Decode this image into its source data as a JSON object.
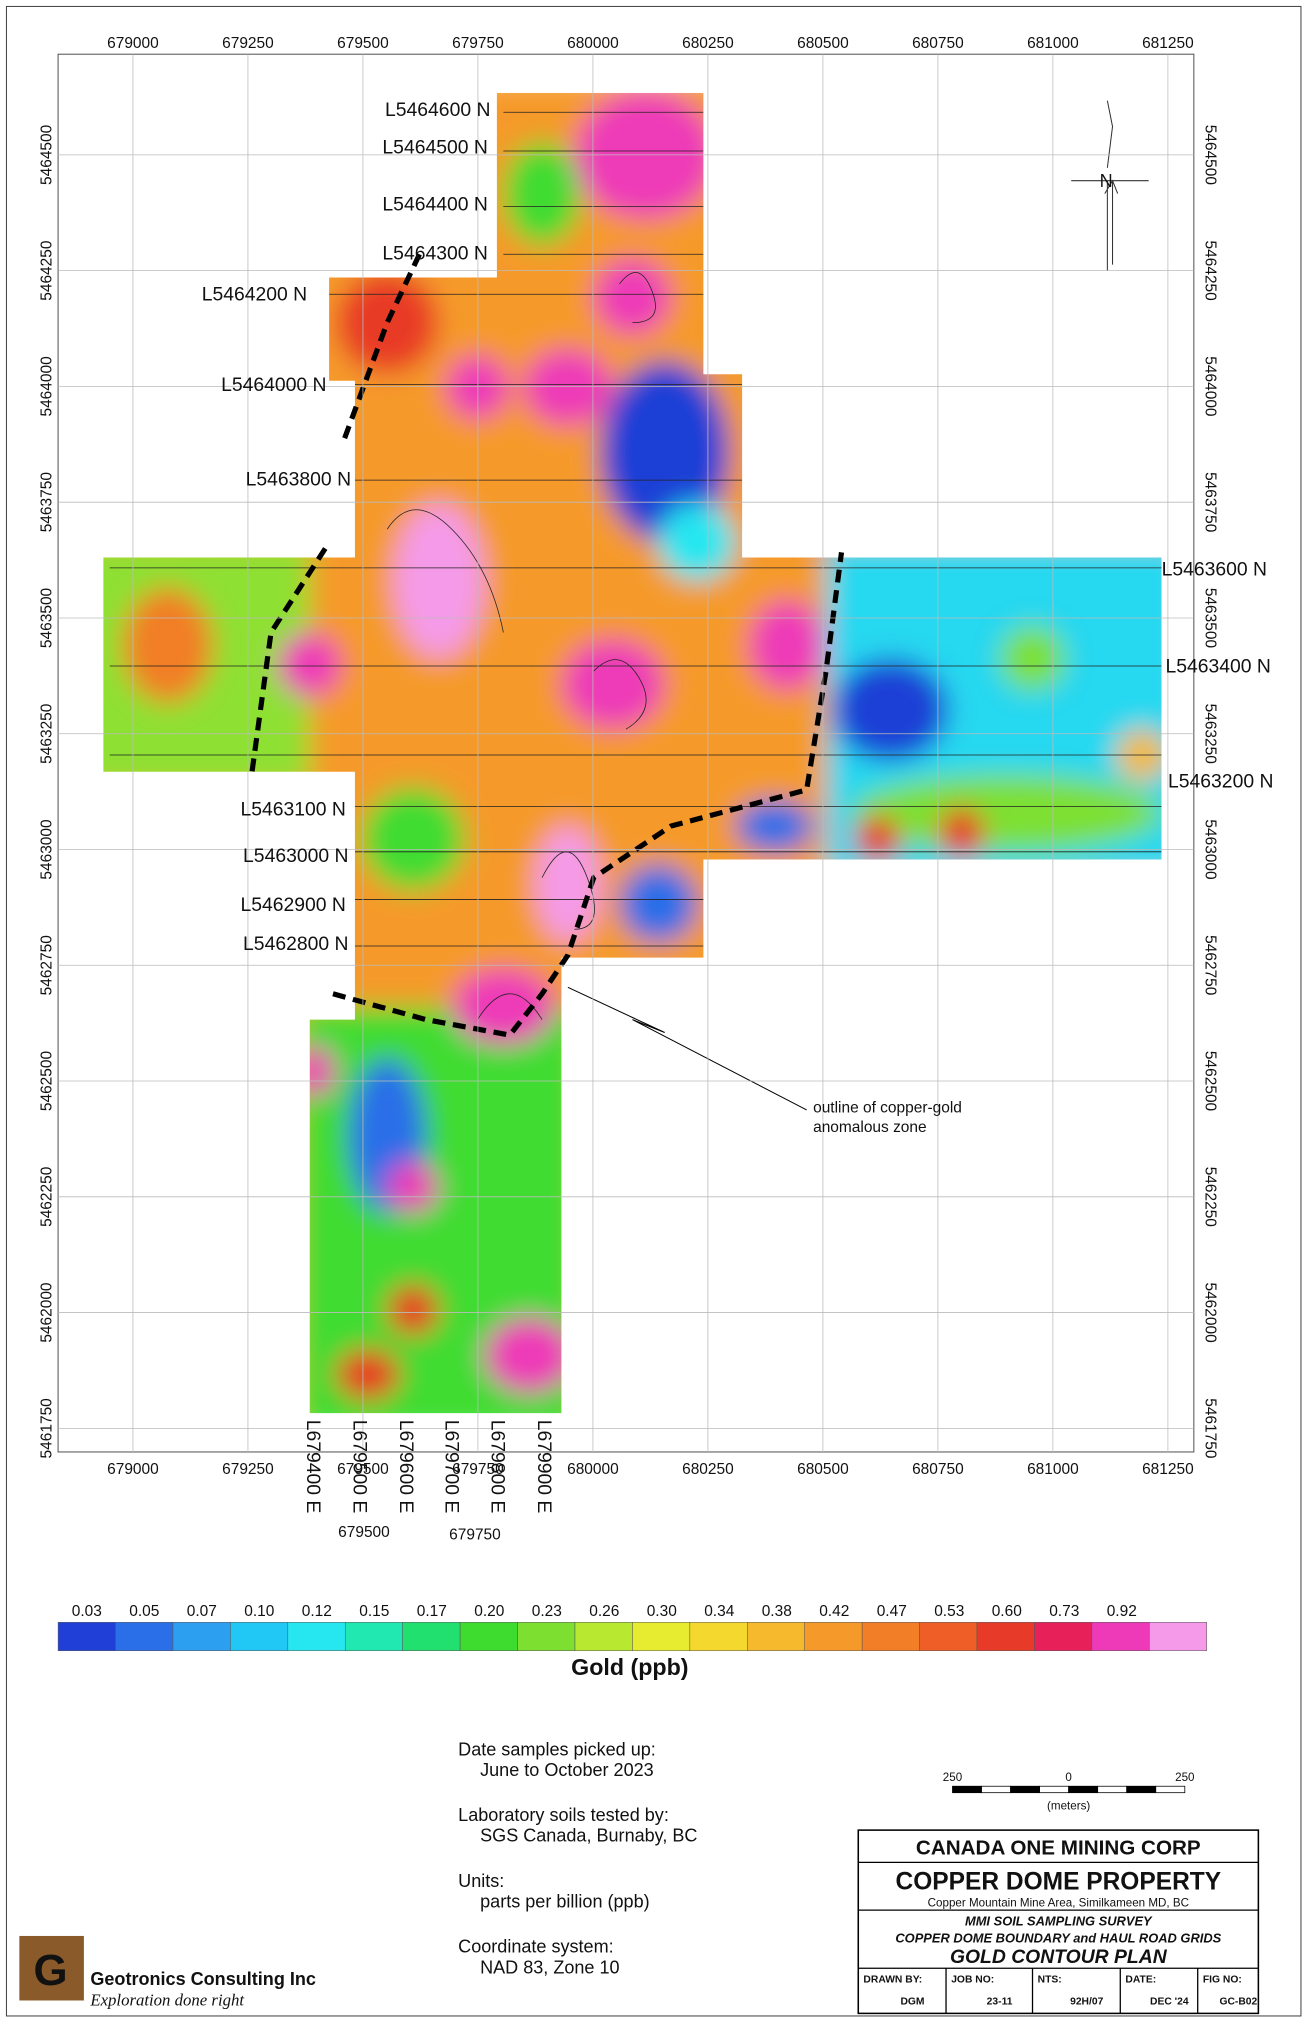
{
  "map": {
    "eastings": [
      679000,
      679250,
      679500,
      679750,
      680000,
      680250,
      680500,
      680750,
      681000,
      681250
    ],
    "northings": [
      5464500,
      5464250,
      5464000,
      5463750,
      5463500,
      5463250,
      5463000,
      5462750,
      5462500,
      5462250,
      5462000,
      5461750
    ],
    "lines_n": [
      "L5464600 N",
      "L5464500 N",
      "L5464400 N",
      "L5464300 N",
      "L5464200 N",
      "L5464000 N",
      "L5463800 N",
      "L5463600 N",
      "L5463400 N",
      "L5463200 N",
      "L5463100 N",
      "L5463000 N",
      "L5462900 N",
      "L5462800 N"
    ],
    "lines_e": [
      "L679400 E",
      "L679500 E",
      "L679600 E",
      "L679700 E",
      "L679800 E",
      "L679900 E"
    ],
    "sub_eastings": [
      679500,
      679750
    ],
    "annotation": [
      "outline of copper-gold",
      "anomalous zone"
    ]
  },
  "legend": {
    "title": "Gold (ppb)",
    "values": [
      0.03,
      0.05,
      0.07,
      {
        "value": 0.1,
        "label": "0.10"
      },
      0.12,
      0.15,
      0.17,
      {
        "value": 0.2,
        "label": "0.20"
      },
      0.23,
      0.26,
      {
        "value": 0.3,
        "label": "0.30"
      },
      0.34,
      0.38,
      0.42,
      0.47,
      0.53,
      {
        "value": 0.6,
        "label": "0.60"
      },
      0.73,
      0.92
    ],
    "colors": [
      "#1f3fd6",
      "#2a6ee8",
      "#2c9ff0",
      "#22c8f5",
      "#26e6f0",
      "#20e8b0",
      "#22e070",
      "#3fdc30",
      "#7de030",
      "#b8e830",
      "#e8ec30",
      "#f4d82e",
      "#f6b82c",
      "#f59a2a",
      "#f27e28",
      "#ee5e26",
      "#e83a28",
      "#e8205a",
      "#ee3ab8",
      "#f59ae8"
    ]
  },
  "notes": [
    {
      "heading": "Date samples picked up:",
      "text": "June to October 2023"
    },
    {
      "heading": "Laboratory soils tested by:",
      "text": "SGS Canada, Burnaby, BC"
    },
    {
      "heading": "Units:",
      "text": "parts per billion (ppb)"
    },
    {
      "heading": "Coordinate system:",
      "text": "NAD 83, Zone 10"
    }
  ],
  "scale_bar": {
    "labels": [
      250,
      0,
      250
    ],
    "unit": "(meters)"
  },
  "title_block": {
    "company": "CANADA ONE MINING CORP",
    "property": "COPPER DOME PROPERTY",
    "location": "Copper Mountain Mine Area, Similkameen MD, BC",
    "survey": "MMI SOIL SAMPLING SURVEY",
    "grids": "COPPER DOME BOUNDARY and HAUL ROAD GRIDS",
    "plan": "GOLD CONTOUR PLAN",
    "fields": [
      {
        "label": "DRAWN BY:",
        "value": "DGM"
      },
      {
        "label": "JOB NO:",
        "value": "23-11"
      },
      {
        "label": "NTS:",
        "value": "92H/07"
      },
      {
        "label": "DATE:",
        "value": "DEC '24"
      },
      {
        "label": "FIG NO:",
        "value": "GC-B02"
      }
    ]
  },
  "company": {
    "name": "Geotronics Consulting Inc",
    "tagline": "Exploration done right"
  }
}
